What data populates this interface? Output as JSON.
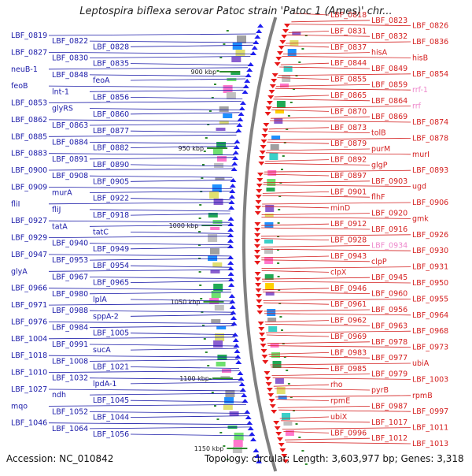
{
  "title": "Leptospira biflexa serovar Patoc strain 'Patoc 1 (Ames)' chr...",
  "footer": {
    "accession": "Accession: NC_010842",
    "stats": "Topology: circular; Length: 3,603,977 bp; Genes: 3,318"
  },
  "colors": {
    "left_labels": "#1a1aa8",
    "right_labels": "#d42020",
    "pink_labels": "#ee88cc",
    "backbone": "#808080",
    "forward_features": "#1e1ef0",
    "reverse_features": "#e81818",
    "tick": "#2e8b2e"
  },
  "scale_ticks": [
    "900 kbp",
    "950 kbp",
    "1000 kbp",
    "1050 kbp",
    "1100 kbp",
    "1150 kbp"
  ],
  "left_labels": [
    "LBF_0819",
    "LBF_0822",
    "LBF_0828",
    "LBF_0827",
    "LBF_0830",
    "LBF_0835",
    "neuB-1",
    "LBF_0848",
    "feoA",
    "feoB",
    "lnt-1",
    "LBF_0856",
    "LBF_0853",
    "glyRS",
    "LBF_0860",
    "LBF_0862",
    "LBF_0863",
    "LBF_0877",
    "LBF_0885",
    "LBF_0884",
    "LBF_0882",
    "LBF_0883",
    "LBF_0891",
    "LBF_0890",
    "LBF_0900",
    "LBF_0908",
    "LBF_0905",
    "LBF_0909",
    "murA",
    "LBF_0922",
    "fliI",
    "fliJ",
    "LBF_0918",
    "LBF_0927",
    "tatA",
    "tatC",
    "LBF_0929",
    "LBF_0940",
    "LBF_0949",
    "LBF_0947",
    "LBF_0953",
    "LBF_0954",
    "glyA",
    "LBF_0967",
    "LBF_0965",
    "LBF_0966",
    "LBF_0980",
    "lplA",
    "LBF_0971",
    "LBF_0988",
    "sppA-2",
    "LBF_0976",
    "LBF_0984",
    "LBF_1005",
    "LBF_1004",
    "LBF_0991",
    "sucA",
    "LBF_1018",
    "LBF_1008",
    "LBF_1021",
    "LBF_1010",
    "LBF_1032",
    "lpdA-1",
    "LBF_1027",
    "ndh",
    "LBF_1045",
    "mqo",
    "LBF_1052",
    "LBF_1044",
    "LBF_1046",
    "LBF_1064",
    "LBF_1056"
  ],
  "right_labels": [
    "LBF_0818",
    "LBF_0823",
    "LBF_0826",
    "LBF_0831",
    "LBF_0832",
    "LBF_0836",
    "LBF_0837",
    "hisA",
    "hisB",
    "LBF_0844",
    "LBF_0849",
    "LBF_0854",
    "LBF_0855",
    "LBF_0859",
    "rrf-1",
    "LBF_0865",
    "LBF_0864",
    "rrf",
    "LBF_0870",
    "LBF_0869",
    "LBF_0874",
    "LBF_0873",
    "tolB",
    "LBF_0878",
    "LBF_0879",
    "purM",
    "murI",
    "LBF_0892",
    "glgP",
    "LBF_0893",
    "LBF_0897",
    "LBF_0903",
    "ugd",
    "LBF_0901",
    "flhF",
    "LBF_0906",
    "minD",
    "LBF_0920",
    "gmk",
    "LBF_0912",
    "LBF_0916",
    "LBF_0926",
    "LBF_0928",
    "LBF_0934",
    "LBF_0930",
    "LBF_0943",
    "clpP",
    "LBF_0931",
    "clpX",
    "LBF_0945",
    "LBF_0950",
    "LBF_0946",
    "LBF_0960",
    "LBF_0955",
    "LBF_0961",
    "LBF_0956",
    "LBF_0964",
    "LBF_0962",
    "LBF_0963",
    "LBF_0968",
    "LBF_0969",
    "LBF_0978",
    "LBF_0973",
    "LBF_0983",
    "LBF_0977",
    "ubiA",
    "LBF_0985",
    "LBF_0979",
    "LBF_1003",
    "rho",
    "pyrB",
    "rpmB",
    "rpmE",
    "LBF_0987",
    "LBF_0997",
    "ubiX",
    "LBF_1017",
    "LBF_1011",
    "LBF_0996",
    "LBF_1012",
    "LBF_1013"
  ]
}
